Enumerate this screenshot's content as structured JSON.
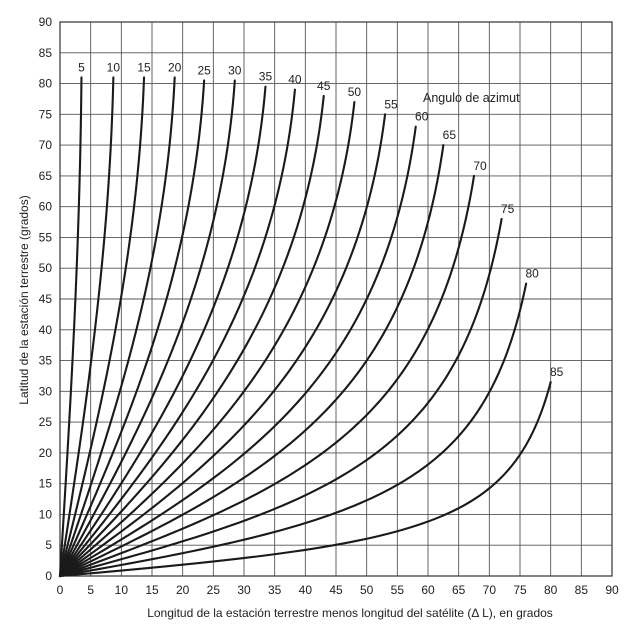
{
  "chart_data": {
    "type": "line",
    "xlabel": "Longitud de la estación terrestre menos longitud del satélite (Δ L), en grados",
    "ylabel": "Latitud de la estación terrestre (grados)",
    "xlim": [
      0,
      90
    ],
    "ylim": [
      0,
      90
    ],
    "xticks": [
      "0",
      "5",
      "10",
      "15",
      "20",
      "25",
      "30",
      "35",
      "40",
      "45",
      "50",
      "55",
      "60",
      "65",
      "70",
      "75",
      "80",
      "85",
      "90"
    ],
    "yticks": [
      "0",
      "5",
      "10",
      "15",
      "20",
      "25",
      "30",
      "35",
      "40",
      "45",
      "50",
      "55",
      "60",
      "65",
      "70",
      "75",
      "80",
      "85",
      "90"
    ],
    "grid": true,
    "annotation": "Angulo de azimut",
    "series": [
      {
        "name": "5",
        "x": [
          0,
          3.5
        ],
        "y": [
          0,
          81
        ]
      },
      {
        "name": "10",
        "x": [
          0,
          8.7
        ],
        "y": [
          0,
          81
        ]
      },
      {
        "name": "15",
        "x": [
          0,
          13.7
        ],
        "y": [
          0,
          81
        ]
      },
      {
        "name": "20",
        "x": [
          0,
          18.7
        ],
        "y": [
          0,
          81
        ]
      },
      {
        "name": "25",
        "x": [
          0,
          23.5
        ],
        "y": [
          0,
          80.5
        ]
      },
      {
        "name": "30",
        "x": [
          0,
          28.5
        ],
        "y": [
          0,
          80.5
        ]
      },
      {
        "name": "35",
        "x": [
          0,
          33.5
        ],
        "y": [
          0,
          79.5
        ]
      },
      {
        "name": "40",
        "x": [
          0,
          38.3
        ],
        "y": [
          0,
          79
        ]
      },
      {
        "name": "45",
        "x": [
          0,
          43
        ],
        "y": [
          0,
          78
        ]
      },
      {
        "name": "50",
        "x": [
          0,
          48
        ],
        "y": [
          0,
          77
        ]
      },
      {
        "name": "55",
        "x": [
          0,
          53
        ],
        "y": [
          0,
          75
        ]
      },
      {
        "name": "60",
        "x": [
          0,
          58
        ],
        "y": [
          0,
          73
        ]
      },
      {
        "name": "65",
        "x": [
          0,
          62.5
        ],
        "y": [
          0,
          70
        ]
      },
      {
        "name": "70",
        "x": [
          0,
          67.5
        ],
        "y": [
          0,
          65
        ]
      },
      {
        "name": "75",
        "x": [
          0,
          72
        ],
        "y": [
          0,
          58
        ]
      },
      {
        "name": "80",
        "x": [
          0,
          76
        ],
        "y": [
          0,
          47.5
        ]
      },
      {
        "name": "85",
        "x": [
          0,
          80
        ],
        "y": [
          0,
          31.5
        ]
      }
    ]
  }
}
